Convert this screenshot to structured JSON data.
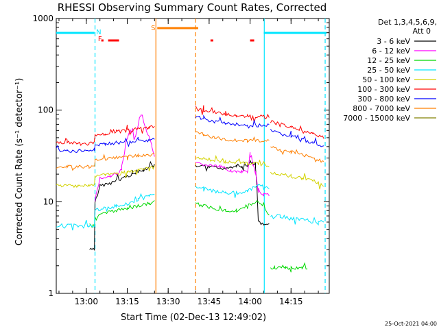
{
  "chart_data": {
    "type": "line",
    "title": "RHESSI Observing Summary Count Rates, Corrected",
    "xlabel": "Start Time (02-Dec-13 12:49:02)",
    "ylabel": "Corrected Count Rate (s⁻¹ detector⁻¹)",
    "y_scale": "log",
    "ylim": [
      1,
      1000
    ],
    "x_unit": "minutes after 12:49:02",
    "xlim": [
      0,
      100
    ],
    "x_ticks": [
      {
        "label": "13:00",
        "value": 11
      },
      {
        "label": "13:15",
        "value": 26
      },
      {
        "label": "13:30",
        "value": 41
      },
      {
        "label": "13:45",
        "value": 56
      },
      {
        "label": "14:00",
        "value": 71
      },
      {
        "label": "14:15",
        "value": 86
      }
    ],
    "y_ticks": [
      {
        "label": "1",
        "value": 1
      },
      {
        "label": "10",
        "value": 10
      },
      {
        "label": "100",
        "value": 100
      },
      {
        "label": "1000",
        "value": 1000
      }
    ],
    "legend": {
      "title": "Det 1,3,4,5,6,9,",
      "subtitle": "Att 0",
      "placement": "right",
      "entries": [
        {
          "label": "3 - 6 keV",
          "color": "#000000"
        },
        {
          "label": "6 - 12 keV",
          "color": "#ff00ff"
        },
        {
          "label": "12 - 25 keV",
          "color": "#00d800"
        },
        {
          "label": "25 - 50 keV",
          "color": "#00e5ff"
        },
        {
          "label": "50 - 100 keV",
          "color": "#d2d200"
        },
        {
          "label": "100 - 300 keV",
          "color": "#ff0000"
        },
        {
          "label": "300 - 800 keV",
          "color": "#0000ff"
        },
        {
          "label": "800 - 7000 keV",
          "color": "#ff7f00"
        },
        {
          "label": "7000 - 15000 keV",
          "color": "#808000"
        }
      ]
    },
    "data_gap": [
      36.5,
      51
    ],
    "series": [
      {
        "name": "3 - 6 keV",
        "color": "#000000",
        "x": [
          12.2,
          14,
          14.2,
          16,
          20,
          24,
          28,
          32,
          36
        ],
        "y": [
          3,
          3,
          10,
          15,
          16,
          18,
          20,
          22,
          25
        ]
      },
      {
        "name": "3 - 6 keV",
        "color": "#000000",
        "x": [
          51,
          56,
          60,
          64,
          66,
          68,
          70,
          71,
          72,
          73,
          74,
          76,
          78
        ],
        "y": [
          24,
          24,
          23,
          24,
          25,
          24,
          24,
          28,
          26,
          24,
          6,
          5.5,
          6
        ]
      },
      {
        "name": "6 - 12 keV",
        "color": "#ff00ff",
        "x": [
          14.2,
          16,
          20,
          24,
          27,
          29,
          31,
          33,
          35,
          36
        ],
        "y": [
          10,
          18,
          19,
          22,
          60,
          50,
          90,
          60,
          40,
          30
        ]
      },
      {
        "name": "6 - 12 keV",
        "color": "#ff00ff",
        "x": [
          51,
          56,
          60,
          64,
          66,
          68,
          70,
          71,
          72,
          73,
          74,
          76,
          78
        ],
        "y": [
          26,
          25,
          24,
          22,
          21,
          21,
          22,
          30,
          25,
          22,
          13,
          12,
          12
        ]
      },
      {
        "name": "12 - 25 keV",
        "color": "#00d800",
        "x": [
          12.2,
          14,
          14.2,
          18,
          22,
          26,
          30,
          34,
          36
        ],
        "y": [
          5.5,
          5.5,
          7,
          7.5,
          8,
          8.5,
          9,
          9.5,
          10
        ]
      },
      {
        "name": "12 - 25 keV",
        "color": "#00d800",
        "x": [
          51,
          54,
          58,
          62,
          66,
          70,
          74,
          78
        ],
        "y": [
          9.5,
          9,
          8.5,
          8,
          8,
          9,
          10,
          7
        ]
      },
      {
        "name": "12 - 25 keV",
        "color": "#00d800",
        "x": [
          78.5,
          80,
          82,
          84,
          86,
          88,
          90,
          92
        ],
        "y": [
          1.9,
          1.9,
          1.9,
          1.9,
          1.9,
          1.9,
          1.9,
          1.9
        ]
      },
      {
        "name": "25 - 50 keV",
        "color": "#00e5ff",
        "x": [
          0,
          4,
          8,
          12,
          14,
          14.2,
          18,
          22,
          26,
          30,
          34,
          36
        ],
        "y": [
          5.5,
          5.5,
          5.5,
          5.5,
          5.5,
          8,
          8.5,
          9,
          9.5,
          10.5,
          11.5,
          12.5
        ]
      },
      {
        "name": "25 - 50 keV",
        "color": "#00e5ff",
        "x": [
          51,
          54,
          58,
          62,
          66,
          70,
          74,
          78
        ],
        "y": [
          15,
          14,
          13,
          12.5,
          12.5,
          13,
          15,
          14
        ]
      },
      {
        "name": "25 - 50 keV",
        "color": "#00e5ff",
        "x": [
          78.5,
          82,
          86,
          90,
          94,
          96,
          98
        ],
        "y": [
          7,
          7,
          6.5,
          6.5,
          6,
          6,
          6
        ]
      },
      {
        "name": "50 - 100 keV",
        "color": "#d2d200",
        "x": [
          0,
          4,
          8,
          12,
          14,
          14.2,
          18,
          22,
          26,
          30,
          34,
          36
        ],
        "y": [
          15,
          15,
          15,
          15,
          15,
          19,
          20,
          20,
          21,
          22,
          23,
          24
        ]
      },
      {
        "name": "50 - 100 keV",
        "color": "#d2d200",
        "x": [
          51,
          54,
          58,
          62,
          66,
          70,
          74,
          78
        ],
        "y": [
          31,
          30,
          28,
          27,
          27,
          26,
          26,
          25
        ]
      },
      {
        "name": "50 - 100 keV",
        "color": "#d2d200",
        "x": [
          78.5,
          82,
          86,
          90,
          94,
          98
        ],
        "y": [
          21,
          20,
          19,
          18,
          17,
          15
        ]
      },
      {
        "name": "100 - 300 keV",
        "color": "#ff0000",
        "x": [
          0,
          4,
          8,
          12,
          14,
          14.2,
          18,
          22,
          26,
          30,
          34,
          36
        ],
        "y": [
          45,
          44,
          43,
          43,
          44,
          52,
          55,
          58,
          60,
          62,
          64,
          66
        ]
      },
      {
        "name": "100 - 300 keV",
        "color": "#ff0000",
        "x": [
          51,
          54,
          58,
          62,
          66,
          70,
          74,
          78
        ],
        "y": [
          108,
          100,
          95,
          90,
          88,
          86,
          85,
          86
        ]
      },
      {
        "name": "100 - 300 keV",
        "color": "#ff0000",
        "x": [
          78.5,
          82,
          86,
          90,
          94,
          98
        ],
        "y": [
          75,
          70,
          65,
          60,
          55,
          50
        ]
      },
      {
        "name": "300 - 800 keV",
        "color": "#0000ff",
        "x": [
          0,
          4,
          8,
          12,
          14,
          14.2,
          18,
          22,
          26,
          30,
          34,
          36
        ],
        "y": [
          37,
          36,
          36,
          36,
          37,
          42,
          43,
          44,
          45,
          46,
          47,
          48
        ]
      },
      {
        "name": "300 - 800 keV",
        "color": "#0000ff",
        "x": [
          51,
          54,
          58,
          62,
          66,
          70,
          74,
          78
        ],
        "y": [
          86,
          80,
          75,
          72,
          70,
          68,
          68,
          68
        ]
      },
      {
        "name": "300 - 800 keV",
        "color": "#0000ff",
        "x": [
          78.5,
          82,
          86,
          90,
          94,
          98
        ],
        "y": [
          60,
          55,
          52,
          48,
          44,
          40
        ]
      },
      {
        "name": "800 - 7000 keV",
        "color": "#ff7f00",
        "x": [
          0,
          4,
          8,
          12,
          14,
          14.2,
          18,
          22,
          26,
          30,
          34,
          36
        ],
        "y": [
          24,
          24,
          24,
          24,
          25,
          28,
          29,
          30,
          31,
          32,
          32,
          33
        ]
      },
      {
        "name": "800 - 7000 keV",
        "color": "#ff7f00",
        "x": [
          51,
          54,
          58,
          62,
          66,
          70,
          74,
          78
        ],
        "y": [
          58,
          54,
          50,
          48,
          47,
          46,
          46,
          47
        ]
      },
      {
        "name": "800 - 7000 keV",
        "color": "#ff7f00",
        "x": [
          78.5,
          82,
          86,
          90,
          94,
          98
        ],
        "y": [
          40,
          37,
          35,
          33,
          30,
          27
        ]
      }
    ],
    "annotations": {
      "top_bars": [
        {
          "color": "#00e5ff",
          "x_start": 0,
          "x_end": 14
        },
        {
          "color": "#00e5ff",
          "x_start": 76,
          "x_end": 99
        },
        {
          "color": "#ff7f00",
          "x_start": 37,
          "x_end": 52
        },
        {
          "color": "#ff0000",
          "x_start": 19,
          "x_end": 23
        },
        {
          "color": "#ff0000",
          "x_start": 16.5,
          "x_end": 17.3
        },
        {
          "color": "#ff0000",
          "x_start": 56.5,
          "x_end": 57.5
        },
        {
          "color": "#ff0000",
          "x_start": 71,
          "x_end": 72.5
        }
      ],
      "vlines": [
        {
          "color": "#00e5ff",
          "x": 14.2,
          "dashed": true
        },
        {
          "color": "#ff7f00",
          "x": 36.5,
          "dashed": false
        },
        {
          "color": "#ff7f00",
          "x": 51,
          "dashed": true
        },
        {
          "color": "#00e5ff",
          "x": 76.2,
          "dashed": false
        },
        {
          "color": "#00e5ff",
          "x": 98.5,
          "dashed": true
        }
      ],
      "letters": [
        {
          "text": "N",
          "color": "#00e5ff",
          "x": 14.6
        },
        {
          "text": "F",
          "color": "#ff0000",
          "x": 15.3
        },
        {
          "text": "S",
          "color": "#ff7f00",
          "x": 34.7
        }
      ]
    }
  },
  "footer_date": "25-Oct-2021 04:00"
}
